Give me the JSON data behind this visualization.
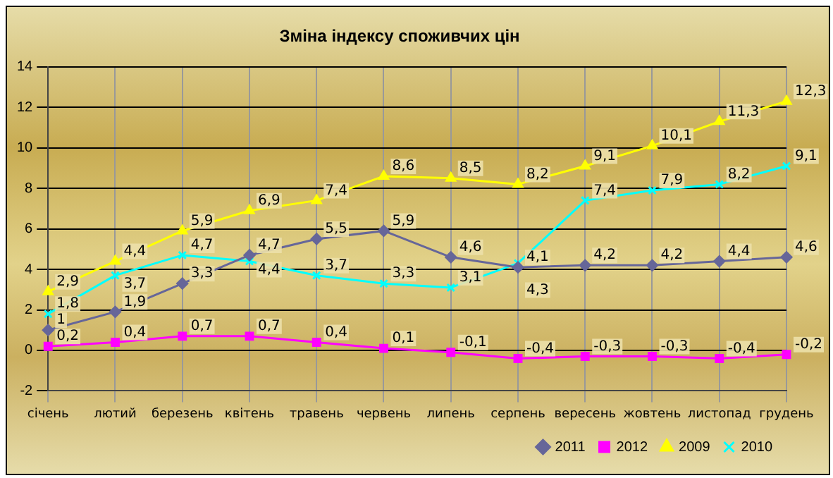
{
  "chart_data": {
    "type": "line",
    "title": "Зміна індексу споживчих цін",
    "categories": [
      "січень",
      "лютий",
      "березень",
      "квітень",
      "травень",
      "червень",
      "липень",
      "серпень",
      "вересень",
      "жовтень",
      "листопад",
      "грудень"
    ],
    "series": [
      {
        "name": "2011",
        "color": "#666699",
        "marker": "diamond",
        "values": [
          1,
          1.9,
          3.3,
          4.7,
          5.5,
          5.9,
          4.6,
          4.1,
          4.2,
          4.2,
          4.4,
          4.6
        ],
        "value_labels": [
          "1",
          "1,9",
          "3,3",
          "4,7",
          "5,5",
          "5,9",
          "4,6",
          "4,1",
          "4,2",
          "4,2",
          "4,4",
          "4,6"
        ]
      },
      {
        "name": "2012",
        "color": "#ff00ff",
        "marker": "square",
        "values": [
          0.2,
          0.4,
          0.7,
          0.7,
          0.4,
          0.1,
          -0.1,
          -0.4,
          -0.3,
          -0.3,
          -0.4,
          -0.2
        ],
        "value_labels": [
          "0,2",
          "0,4",
          "0,7",
          "0,7",
          "0,4",
          "0,1",
          "-0,1",
          "-0,4",
          "-0,3",
          "-0,3",
          "-0,4",
          "-0,2"
        ]
      },
      {
        "name": "2009",
        "color": "#ffff00",
        "marker": "triangle",
        "values": [
          2.9,
          4.4,
          5.9,
          6.9,
          7.4,
          8.6,
          8.5,
          8.2,
          9.1,
          10.1,
          11.3,
          12.3
        ],
        "value_labels": [
          "2,9",
          "4,4",
          "5,9",
          "6,9",
          "7,4",
          "8,6",
          "8,5",
          "8,2",
          "9,1",
          "10,1",
          "11,3",
          "12,3"
        ]
      },
      {
        "name": "2010",
        "color": "#00ffff",
        "marker": "cross",
        "values": [
          1.8,
          3.7,
          4.7,
          4.4,
          3.7,
          3.3,
          3.1,
          4.3,
          7.4,
          7.9,
          8.2,
          9.1
        ],
        "value_labels": [
          "1,8",
          "3,7",
          "4,7",
          "4,4",
          "3,7",
          "3,3",
          "3,1",
          "4,3",
          "7,4",
          "7,9",
          "8,2",
          "9,1"
        ]
      }
    ],
    "ylim": [
      -2,
      14
    ],
    "yticks": [
      -2,
      0,
      2,
      4,
      6,
      8,
      10,
      12,
      14
    ],
    "grid": true,
    "legend": "bottom right"
  }
}
